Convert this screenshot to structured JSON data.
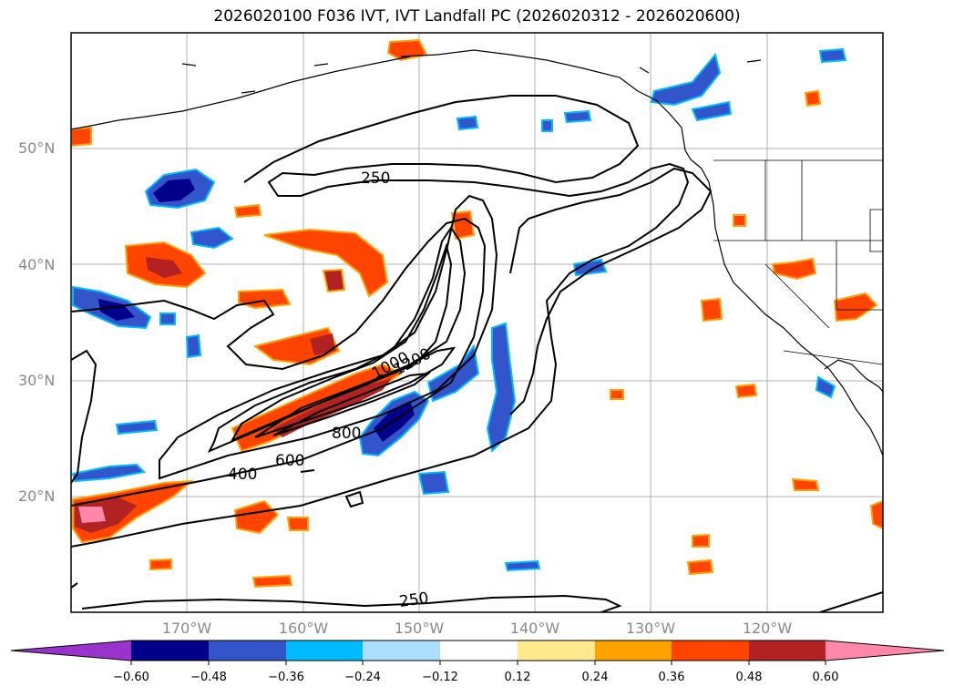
{
  "title": "2026020100 F036 IVT, IVT Landfall PC (2026020312 - 2026020600)",
  "lat_labels": [
    "50°N",
    "40°N",
    "30°N",
    "20°N"
  ],
  "lon_labels": [
    "170°W",
    "160°W",
    "150°W",
    "140°W",
    "130°W",
    "120°W"
  ],
  "contour_labels": [
    "250",
    "400",
    "600",
    "800",
    "1000",
    "1200",
    "250"
  ],
  "colorbar": {
    "colors": [
      "#9933cc",
      "#00008b",
      "#3355cc",
      "#00bbff",
      "#aaddff",
      "#ffffff",
      "#ffe98f",
      "#ffa200",
      "#ff4400",
      "#b22222",
      "#ff88aa"
    ],
    "ticks": [
      "−0.60",
      "−0.48",
      "−0.36",
      "−0.24",
      "−0.12",
      "0.12",
      "0.24",
      "0.36",
      "0.48",
      "0.60"
    ]
  },
  "chart_data": {
    "type": "map",
    "title": "2026020100 F036 IVT, IVT Landfall PC (2026020312 - 2026020600)",
    "lon_range": [
      -180,
      -110
    ],
    "lat_range": [
      10,
      60
    ],
    "ivt_contour_levels": [
      250,
      400,
      600,
      800,
      1000,
      1200
    ],
    "pc_levels": [
      -0.6,
      -0.48,
      -0.36,
      -0.24,
      -0.12,
      0.12,
      0.24,
      0.36,
      0.48,
      0.6
    ],
    "gridlines": true
  }
}
